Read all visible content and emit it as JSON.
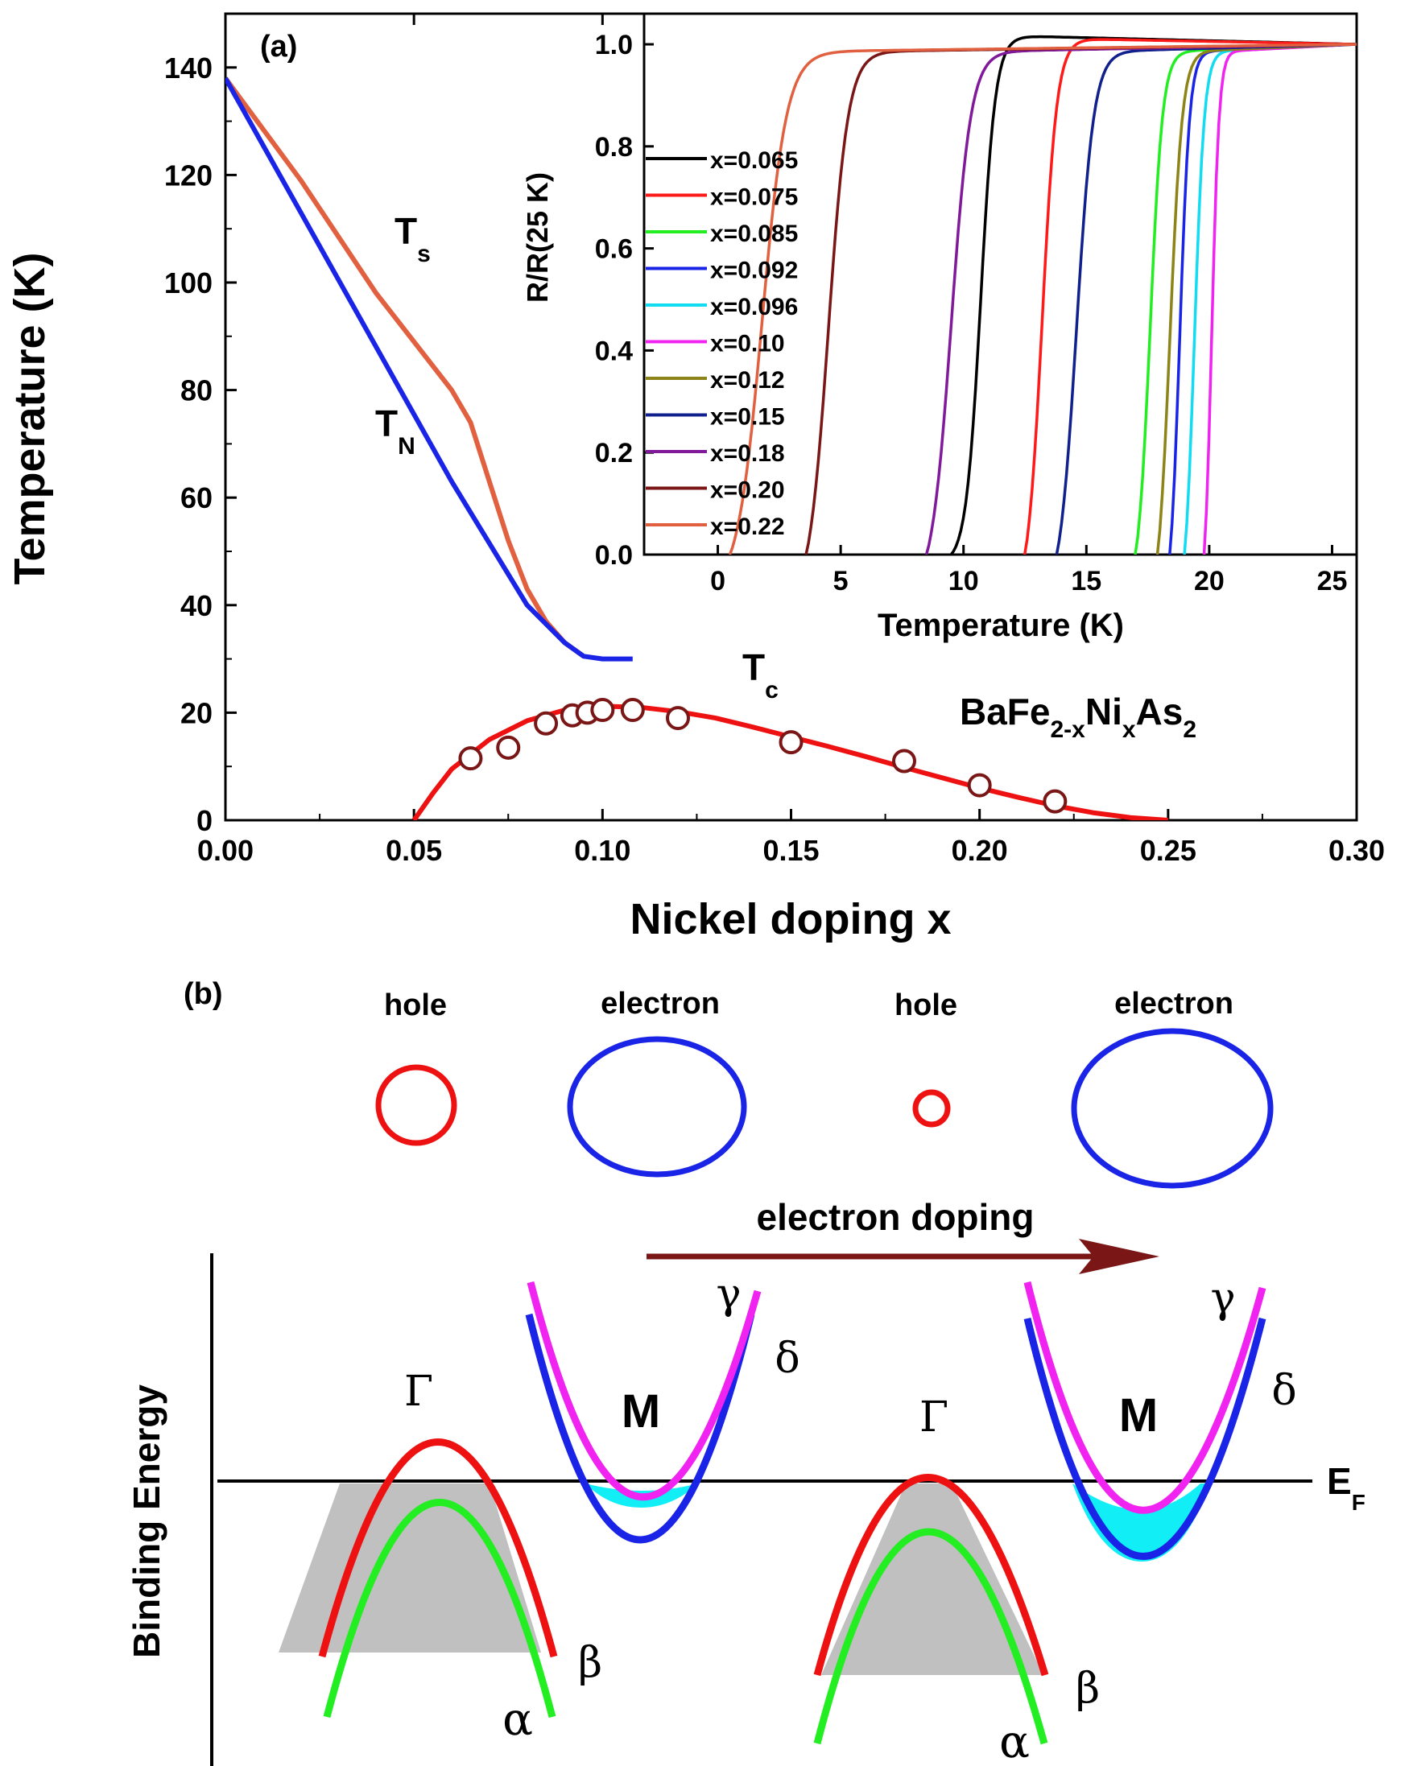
{
  "chart_data": [
    {
      "type": "line",
      "panel": "(a)",
      "title": "",
      "compound": {
        "base": "BaFe",
        "s1": "2-x",
        "ni": "Ni",
        "s2": "x",
        "as": "As",
        "s3": "2"
      },
      "xlabel": "Nickel doping x",
      "ylabel": "Temperature (K)",
      "xlim": [
        0,
        0.3
      ],
      "ylim": [
        0,
        150
      ],
      "xticks": [
        "0.00",
        "0.05",
        "0.10",
        "0.15",
        "0.20",
        "0.25",
        "0.30"
      ],
      "xtick_values": [
        0,
        0.05,
        0.1,
        0.15,
        0.2,
        0.25,
        0.3
      ],
      "yticks": [
        "0",
        "20",
        "40",
        "60",
        "80",
        "100",
        "120",
        "140"
      ],
      "ytick_values": [
        0,
        20,
        40,
        60,
        80,
        100,
        120,
        140
      ],
      "labels": {
        "ts": {
          "main": "T",
          "sub": "s"
        },
        "tn": {
          "main": "T",
          "sub": "N"
        },
        "tc": {
          "main": "T",
          "sub": "c"
        }
      },
      "series": [
        {
          "name": "Ts",
          "color": "#e06040",
          "x": [
            0,
            0.02,
            0.04,
            0.06,
            0.065,
            0.07,
            0.075,
            0.08,
            0.085,
            0.09,
            0.095
          ],
          "y": [
            138,
            119,
            98,
            80,
            74,
            63,
            52,
            43,
            37,
            33,
            30.5
          ]
        },
        {
          "name": "TN",
          "color": "#1a24e6",
          "x": [
            0,
            0.02,
            0.04,
            0.06,
            0.08,
            0.09,
            0.095,
            0.1,
            0.108
          ],
          "y": [
            138,
            113,
            88,
            63,
            40,
            33,
            30.5,
            30,
            30
          ]
        },
        {
          "name": "Tc fit",
          "color": "#ee1111",
          "x": [
            0.05,
            0.055,
            0.06,
            0.07,
            0.08,
            0.09,
            0.1,
            0.11,
            0.12,
            0.13,
            0.14,
            0.15,
            0.16,
            0.17,
            0.18,
            0.19,
            0.2,
            0.21,
            0.22,
            0.23,
            0.24,
            0.25
          ],
          "y": [
            0,
            5,
            9.5,
            15,
            18.5,
            20.5,
            21.2,
            21,
            20.2,
            19,
            17.3,
            15.5,
            13.7,
            11.8,
            9.8,
            7.9,
            6,
            4.3,
            2.7,
            1.4,
            0.5,
            0
          ]
        },
        {
          "name": "Tc data",
          "color": "#7a1616",
          "marker": "circle",
          "x": [
            0.065,
            0.075,
            0.085,
            0.092,
            0.096,
            0.1,
            0.108,
            0.12,
            0.15,
            0.18,
            0.2,
            0.22
          ],
          "y": [
            11.5,
            13.5,
            18,
            19.5,
            20,
            20.5,
            20.5,
            19,
            14.5,
            11,
            6.5,
            3.5
          ]
        }
      ]
    },
    {
      "type": "line",
      "panel": "inset",
      "title": "",
      "xlabel": "Temperature (K)",
      "ylabel": "R/R(25 K)",
      "xlim": [
        -3,
        26
      ],
      "ylim": [
        0,
        1.06
      ],
      "xticks": [
        "0",
        "5",
        "10",
        "15",
        "20",
        "25"
      ],
      "xtick_values": [
        0,
        5,
        10,
        15,
        20,
        25
      ],
      "yticks": [
        "0.0",
        "0.2",
        "0.4",
        "0.6",
        "0.8",
        "1.0"
      ],
      "ytick_values": [
        0,
        0.2,
        0.4,
        0.6,
        0.8,
        1.0
      ],
      "legend_position": "left",
      "series": [
        {
          "name": "x=0.065",
          "color": "#000000",
          "tc": 10.7,
          "w": 0.3,
          "t0": 9.5,
          "overshoot": 1.018
        },
        {
          "name": "x=0.075",
          "color": "#ff1a1a",
          "tc": 13.2,
          "w": 0.3,
          "t0": 12.5,
          "overshoot": 1.012
        },
        {
          "name": "x=0.085",
          "color": "#22ee22",
          "tc": 17.6,
          "w": 0.25,
          "t0": 17.0,
          "overshoot": 1.0
        },
        {
          "name": "x=0.092",
          "color": "#1a24e6",
          "tc": 18.8,
          "w": 0.2,
          "t0": 18.4,
          "overshoot": 1.0
        },
        {
          "name": "x=0.096",
          "color": "#11dcf2",
          "tc": 19.4,
          "w": 0.2,
          "t0": 19.0,
          "overshoot": 1.0
        },
        {
          "name": "x=0.10",
          "color": "#f023f0",
          "tc": 20.1,
          "w": 0.15,
          "t0": 19.8,
          "overshoot": 1.0
        },
        {
          "name": "x=0.12",
          "color": "#8c8418",
          "tc": 18.4,
          "w": 0.25,
          "t0": 17.9,
          "overshoot": 1.0
        },
        {
          "name": "x=0.15",
          "color": "#10208c",
          "tc": 14.6,
          "w": 0.35,
          "t0": 13.8,
          "overshoot": 1.0
        },
        {
          "name": "x=0.18",
          "color": "#801a9a",
          "tc": 9.5,
          "w": 0.4,
          "t0": 8.5,
          "overshoot": 1.0
        },
        {
          "name": "x=0.20",
          "color": "#7a1616",
          "tc": 4.5,
          "w": 0.4,
          "t0": 3.6,
          "overshoot": 1.0
        },
        {
          "name": "x=0.22",
          "color": "#e06040",
          "tc": 1.8,
          "w": 0.5,
          "t0": 0.5,
          "overshoot": 1.0
        }
      ]
    },
    {
      "type": "diagram",
      "panel": "(b)",
      "ylabel": "Binding Energy",
      "pocket_labels": [
        "hole",
        "electron",
        "hole",
        "electron"
      ],
      "arrow_label": "electron doping",
      "fermi_label": {
        "main": "E",
        "sub": "F"
      },
      "band_labels": {
        "gamma_point": "Γ",
        "m_point": "M",
        "gamma": "γ",
        "delta": "δ",
        "beta": "β",
        "alpha": "α"
      },
      "colors": {
        "hole": "#ee1111",
        "electron": "#1a24e6",
        "beta": "#ee1111",
        "alpha": "#22ee22",
        "gamma": "#f023f0",
        "delta": "#1a24e6",
        "filled_hole": "#c0c0c0",
        "filled_electron": "#11eef5",
        "arrow": "#7a1616"
      }
    }
  ]
}
